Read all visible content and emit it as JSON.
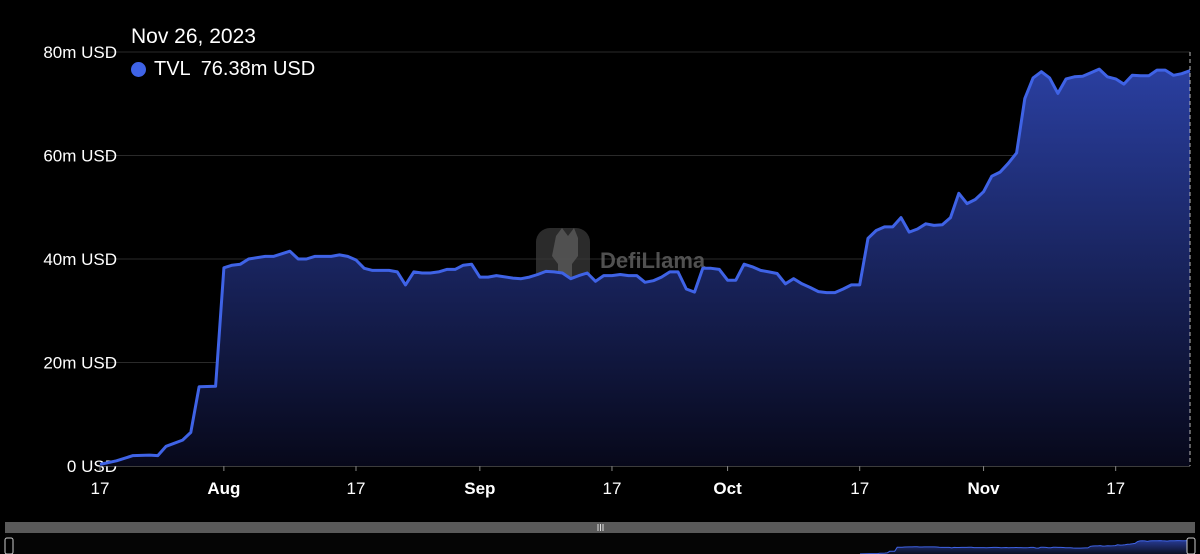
{
  "tooltip": {
    "date": "Nov 26, 2023",
    "series_label": "TVL",
    "value_label": "76.38m USD",
    "dot_color": "#3f63e6"
  },
  "watermark": "DefiLlama",
  "colors": {
    "line": "#3f63e6",
    "area_top": "#2a3fa0",
    "area_bottom": "#07081a",
    "grid": "#2a2a2a",
    "slider_bg": "#555555"
  },
  "chart_data": {
    "type": "area",
    "title": "",
    "xlabel": "",
    "ylabel": "",
    "ylim": [
      0,
      80
    ],
    "y_ticks": [
      {
        "value": 0,
        "label": "0 USD"
      },
      {
        "value": 20,
        "label": "20m USD"
      },
      {
        "value": 40,
        "label": "40m USD"
      },
      {
        "value": 60,
        "label": "60m USD"
      },
      {
        "value": 80,
        "label": "80m USD"
      }
    ],
    "x_range": [
      "2023-07-17",
      "2023-11-26"
    ],
    "x_ticks": [
      {
        "date": "2023-07-17",
        "label": "17",
        "month": false
      },
      {
        "date": "2023-08-01",
        "label": "Aug",
        "month": true
      },
      {
        "date": "2023-08-17",
        "label": "17",
        "month": false
      },
      {
        "date": "2023-09-01",
        "label": "Sep",
        "month": true
      },
      {
        "date": "2023-09-17",
        "label": "17",
        "month": false
      },
      {
        "date": "2023-10-01",
        "label": "Oct",
        "month": true
      },
      {
        "date": "2023-10-17",
        "label": "17",
        "month": false
      },
      {
        "date": "2023-11-01",
        "label": "Nov",
        "month": true
      },
      {
        "date": "2023-11-17",
        "label": "17",
        "month": false
      }
    ],
    "grid": true,
    "legend": "tooltip top-left",
    "series": [
      {
        "name": "TVL",
        "unit": "m USD",
        "points": [
          [
            "2023-07-17",
            0.3
          ],
          [
            "2023-07-19",
            1.0
          ],
          [
            "2023-07-21",
            2.0
          ],
          [
            "2023-07-23",
            2.1
          ],
          [
            "2023-07-24",
            2.0
          ],
          [
            "2023-07-25",
            3.8
          ],
          [
            "2023-07-27",
            5.0
          ],
          [
            "2023-07-28",
            6.5
          ],
          [
            "2023-07-29",
            15.3
          ],
          [
            "2023-07-31",
            15.4
          ],
          [
            "2023-08-01",
            38.3
          ],
          [
            "2023-08-02",
            38.8
          ],
          [
            "2023-08-03",
            39.0
          ],
          [
            "2023-08-04",
            40.0
          ],
          [
            "2023-08-06",
            40.5
          ],
          [
            "2023-08-07",
            40.5
          ],
          [
            "2023-08-08",
            41.0
          ],
          [
            "2023-08-09",
            41.5
          ],
          [
            "2023-08-10",
            40.0
          ],
          [
            "2023-08-11",
            40.0
          ],
          [
            "2023-08-12",
            40.5
          ],
          [
            "2023-08-14",
            40.5
          ],
          [
            "2023-08-15",
            40.8
          ],
          [
            "2023-08-16",
            40.5
          ],
          [
            "2023-08-17",
            39.8
          ],
          [
            "2023-08-18",
            38.2
          ],
          [
            "2023-08-19",
            37.8
          ],
          [
            "2023-08-21",
            37.8
          ],
          [
            "2023-08-22",
            37.5
          ],
          [
            "2023-08-23",
            35.0
          ],
          [
            "2023-08-24",
            37.5
          ],
          [
            "2023-08-25",
            37.3
          ],
          [
            "2023-08-26",
            37.3
          ],
          [
            "2023-08-27",
            37.5
          ],
          [
            "2023-08-28",
            38.0
          ],
          [
            "2023-08-29",
            38.0
          ],
          [
            "2023-08-30",
            38.8
          ],
          [
            "2023-08-31",
            39.0
          ],
          [
            "2023-09-01",
            36.5
          ],
          [
            "2023-09-02",
            36.5
          ],
          [
            "2023-09-03",
            36.8
          ],
          [
            "2023-09-05",
            36.3
          ],
          [
            "2023-09-06",
            36.2
          ],
          [
            "2023-09-07",
            36.5
          ],
          [
            "2023-09-08",
            37.0
          ],
          [
            "2023-09-09",
            37.6
          ],
          [
            "2023-09-10",
            37.5
          ],
          [
            "2023-09-11",
            37.3
          ],
          [
            "2023-09-12",
            36.2
          ],
          [
            "2023-09-13",
            36.8
          ],
          [
            "2023-09-14",
            37.3
          ],
          [
            "2023-09-15",
            35.7
          ],
          [
            "2023-09-16",
            36.8
          ],
          [
            "2023-09-17",
            36.8
          ],
          [
            "2023-09-18",
            37.0
          ],
          [
            "2023-09-19",
            36.8
          ],
          [
            "2023-09-20",
            36.8
          ],
          [
            "2023-09-21",
            35.5
          ],
          [
            "2023-09-22",
            35.8
          ],
          [
            "2023-09-23",
            36.5
          ],
          [
            "2023-09-24",
            37.5
          ],
          [
            "2023-09-25",
            37.5
          ],
          [
            "2023-09-26",
            34.2
          ],
          [
            "2023-09-27",
            33.6
          ],
          [
            "2023-09-28",
            38.2
          ],
          [
            "2023-09-29",
            38.2
          ],
          [
            "2023-09-30",
            38.0
          ],
          [
            "2023-10-01",
            35.9
          ],
          [
            "2023-10-02",
            35.9
          ],
          [
            "2023-10-03",
            39.0
          ],
          [
            "2023-10-04",
            38.5
          ],
          [
            "2023-10-05",
            37.8
          ],
          [
            "2023-10-06",
            37.5
          ],
          [
            "2023-10-07",
            37.2
          ],
          [
            "2023-10-08",
            35.2
          ],
          [
            "2023-10-09",
            36.2
          ],
          [
            "2023-10-10",
            35.2
          ],
          [
            "2023-10-11",
            34.5
          ],
          [
            "2023-10-12",
            33.7
          ],
          [
            "2023-10-13",
            33.5
          ],
          [
            "2023-10-14",
            33.5
          ],
          [
            "2023-10-15",
            34.2
          ],
          [
            "2023-10-16",
            35.0
          ],
          [
            "2023-10-17",
            35.0
          ],
          [
            "2023-10-18",
            44.0
          ],
          [
            "2023-10-19",
            45.5
          ],
          [
            "2023-10-20",
            46.2
          ],
          [
            "2023-10-21",
            46.2
          ],
          [
            "2023-10-22",
            48.0
          ],
          [
            "2023-10-23",
            45.2
          ],
          [
            "2023-10-24",
            45.8
          ],
          [
            "2023-10-25",
            46.8
          ],
          [
            "2023-10-26",
            46.5
          ],
          [
            "2023-10-27",
            46.6
          ],
          [
            "2023-10-28",
            48.0
          ],
          [
            "2023-10-29",
            52.7
          ],
          [
            "2023-10-30",
            50.7
          ],
          [
            "2023-10-31",
            51.5
          ],
          [
            "2023-11-01",
            53.0
          ],
          [
            "2023-11-02",
            56.0
          ],
          [
            "2023-11-03",
            56.8
          ],
          [
            "2023-11-04",
            58.5
          ],
          [
            "2023-11-05",
            60.5
          ],
          [
            "2023-11-06",
            71.0
          ],
          [
            "2023-11-07",
            75.0
          ],
          [
            "2023-11-08",
            76.2
          ],
          [
            "2023-11-09",
            75.0
          ],
          [
            "2023-11-10",
            72.0
          ],
          [
            "2023-11-11",
            74.8
          ],
          [
            "2023-11-12",
            75.2
          ],
          [
            "2023-11-13",
            75.3
          ],
          [
            "2023-11-14",
            76.0
          ],
          [
            "2023-11-15",
            76.7
          ],
          [
            "2023-11-16",
            75.2
          ],
          [
            "2023-11-17",
            74.8
          ],
          [
            "2023-11-18",
            73.8
          ],
          [
            "2023-11-19",
            75.5
          ],
          [
            "2023-11-20",
            75.4
          ],
          [
            "2023-11-21",
            75.4
          ],
          [
            "2023-11-22",
            76.5
          ],
          [
            "2023-11-23",
            76.5
          ],
          [
            "2023-11-24",
            75.5
          ],
          [
            "2023-11-25",
            75.8
          ],
          [
            "2023-11-26",
            76.38
          ]
        ]
      }
    ]
  }
}
